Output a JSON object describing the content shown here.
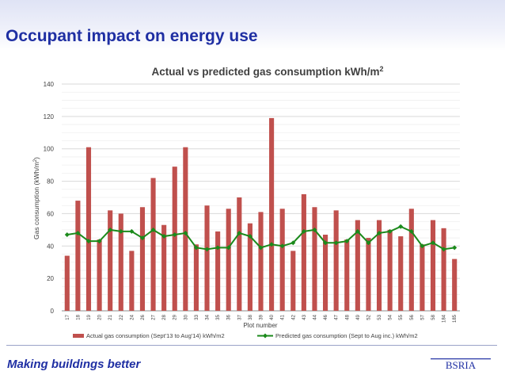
{
  "slide": {
    "title": "Occupant impact on energy use",
    "footer": "Making buildings better",
    "logo_text": "BSRIA"
  },
  "colors": {
    "title_blue": "#1f2fa3",
    "bar_red": "#c0504d",
    "line_green": "#1b8a1b"
  },
  "chart_data": {
    "type": "bar",
    "title": "Actual vs predicted gas consumption kWh/m",
    "title_superscript": "2",
    "xlabel": "Plot number",
    "ylabel": "Gas consumption (kWh/m",
    "ylabel_superscript": "2",
    "ylabel_suffix": ")",
    "ylim": [
      0,
      140
    ],
    "yticks": [
      0,
      20,
      40,
      60,
      80,
      100,
      120,
      140
    ],
    "grid": true,
    "legend_position": "bottom",
    "categories": [
      "17",
      "18",
      "19",
      "20",
      "21",
      "22",
      "24",
      "26",
      "27",
      "28",
      "29",
      "30",
      "33",
      "34",
      "35",
      "36",
      "37",
      "38",
      "39",
      "40",
      "41",
      "42",
      "43",
      "44",
      "46",
      "47",
      "48",
      "49",
      "52",
      "53",
      "54",
      "55",
      "56",
      "57",
      "58",
      "184",
      "185"
    ],
    "series": [
      {
        "name": "Actual gas consumption (Sept'13 to Aug'14) kWh/m2",
        "kind": "bar",
        "values": [
          34,
          68,
          101,
          44,
          62,
          60,
          37,
          64,
          82,
          53,
          89,
          101,
          41,
          65,
          49,
          63,
          70,
          54,
          61,
          119,
          63,
          37,
          72,
          64,
          47,
          62,
          44,
          56,
          45,
          56,
          50,
          46,
          63,
          41,
          56,
          51,
          32
        ]
      },
      {
        "name": "Predicted gas consumption (Sept to Aug inc.) kWh/m2",
        "kind": "line",
        "values": [
          47,
          48,
          43,
          43,
          50,
          49,
          49,
          45,
          50,
          46,
          47,
          48,
          39,
          38,
          39,
          39,
          48,
          46,
          39,
          41,
          40,
          42,
          49,
          50,
          42,
          42,
          43,
          49,
          42,
          48,
          49,
          52,
          49,
          40,
          42,
          38,
          39
        ]
      }
    ]
  }
}
